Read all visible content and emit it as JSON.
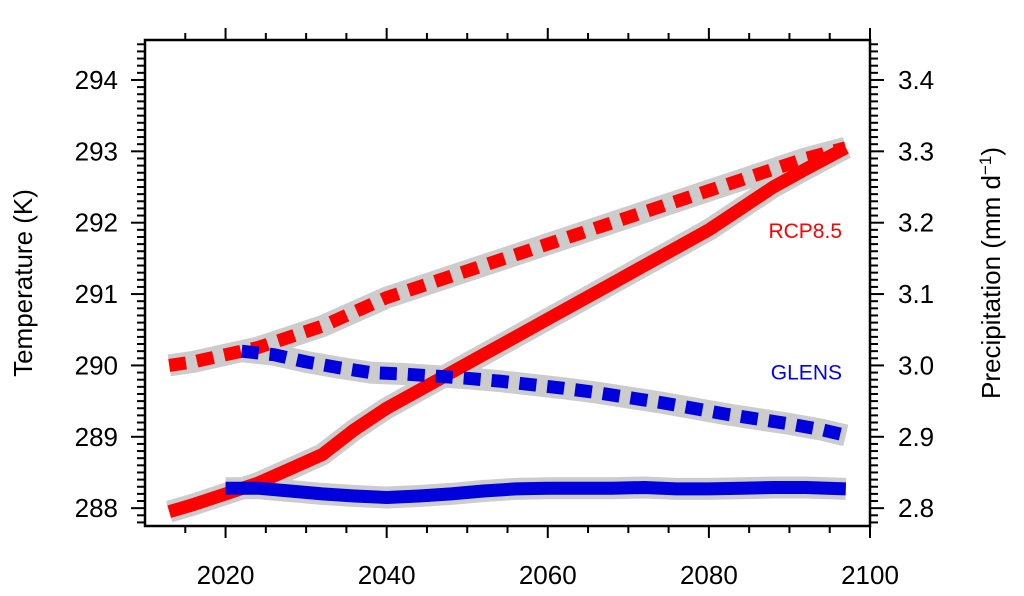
{
  "chart_data": {
    "type": "line",
    "title": "",
    "xlabel": "",
    "ylabel_left": "Temperature (K)",
    "ylabel_right_main": "Precipitation (mm d",
    "ylabel_right_sup": "−1",
    "ylabel_right_close": ")",
    "xlim": [
      2010,
      2100
    ],
    "ylim_left": [
      287.75,
      294.56
    ],
    "ylim_right": [
      2.775,
      3.456
    ],
    "xticks": [
      2020,
      2040,
      2060,
      2080,
      2100
    ],
    "xtick_labels": [
      "2020",
      "2040",
      "2060",
      "2080",
      "2100"
    ],
    "yticks_left": [
      288,
      289,
      290,
      291,
      292,
      293,
      294
    ],
    "ytick_labels_left": [
      "288",
      "289",
      "290",
      "291",
      "292",
      "293",
      "294"
    ],
    "yticks_right": [
      2.8,
      2.9,
      3.0,
      3.1,
      3.2,
      3.3,
      3.4
    ],
    "ytick_labels_right": [
      "2.8",
      "2.9",
      "3.0",
      "3.1",
      "3.2",
      "3.3",
      "3.4"
    ],
    "grid": false,
    "annotations": [
      {
        "text": "RCP8.5",
        "color": "#ff0000",
        "x": 2088,
        "y_left": 291.98
      },
      {
        "text": "GLENS",
        "color": "#0000ee",
        "x": 2088,
        "y_left": 290.0
      }
    ],
    "colors": {
      "rcp": "#ff0000",
      "glens": "#0000dd",
      "spread": "#cccccc",
      "axis": "#000000"
    },
    "series": [
      {
        "name": "RCP8.5 temperature",
        "axis": "left",
        "style": "solid",
        "color": "#ff0000",
        "x": [
          2013,
          2016,
          2020,
          2024,
          2028,
          2032,
          2036,
          2040,
          2044,
          2048,
          2052,
          2056,
          2060,
          2064,
          2068,
          2072,
          2076,
          2080,
          2084,
          2088,
          2092,
          2097
        ],
        "y": [
          287.95,
          288.05,
          288.2,
          288.35,
          288.55,
          288.75,
          289.1,
          289.4,
          289.65,
          289.9,
          290.15,
          290.4,
          290.65,
          290.9,
          291.15,
          291.4,
          291.65,
          291.9,
          292.2,
          292.5,
          292.75,
          293.05
        ]
      },
      {
        "name": "GLENS temperature",
        "axis": "left",
        "style": "solid",
        "color": "#0000dd",
        "x": [
          2020,
          2024,
          2028,
          2032,
          2036,
          2040,
          2044,
          2048,
          2052,
          2056,
          2060,
          2064,
          2068,
          2072,
          2076,
          2080,
          2084,
          2088,
          2092,
          2097
        ],
        "y": [
          288.28,
          288.28,
          288.24,
          288.2,
          288.17,
          288.15,
          288.17,
          288.2,
          288.24,
          288.27,
          288.28,
          288.28,
          288.28,
          288.29,
          288.27,
          288.27,
          288.28,
          288.29,
          288.29,
          288.27
        ]
      },
      {
        "name": "RCP8.5 precipitation",
        "axis": "right",
        "style": "dashed",
        "color": "#ff0000",
        "x": [
          2013,
          2016,
          2020,
          2024,
          2028,
          2032,
          2036,
          2040,
          2044,
          2048,
          2052,
          2056,
          2060,
          2064,
          2068,
          2072,
          2076,
          2080,
          2084,
          2088,
          2092,
          2097
        ],
        "y": [
          3.0,
          3.005,
          3.015,
          3.025,
          3.04,
          3.055,
          3.075,
          3.095,
          3.11,
          3.125,
          3.14,
          3.155,
          3.17,
          3.185,
          3.2,
          3.215,
          3.23,
          3.245,
          3.26,
          3.275,
          3.29,
          3.305
        ]
      },
      {
        "name": "GLENS precipitation",
        "axis": "right",
        "style": "dashed",
        "color": "#0000dd",
        "x": [
          2022,
          2026,
          2030,
          2034,
          2038,
          2042,
          2046,
          2050,
          2054,
          2058,
          2062,
          2066,
          2070,
          2074,
          2078,
          2082,
          2086,
          2090,
          2094,
          2097
        ],
        "y": [
          3.02,
          3.015,
          3.005,
          2.997,
          2.99,
          2.988,
          2.985,
          2.982,
          2.978,
          2.973,
          2.968,
          2.962,
          2.955,
          2.948,
          2.94,
          2.932,
          2.925,
          2.918,
          2.91,
          2.902
        ]
      }
    ]
  }
}
